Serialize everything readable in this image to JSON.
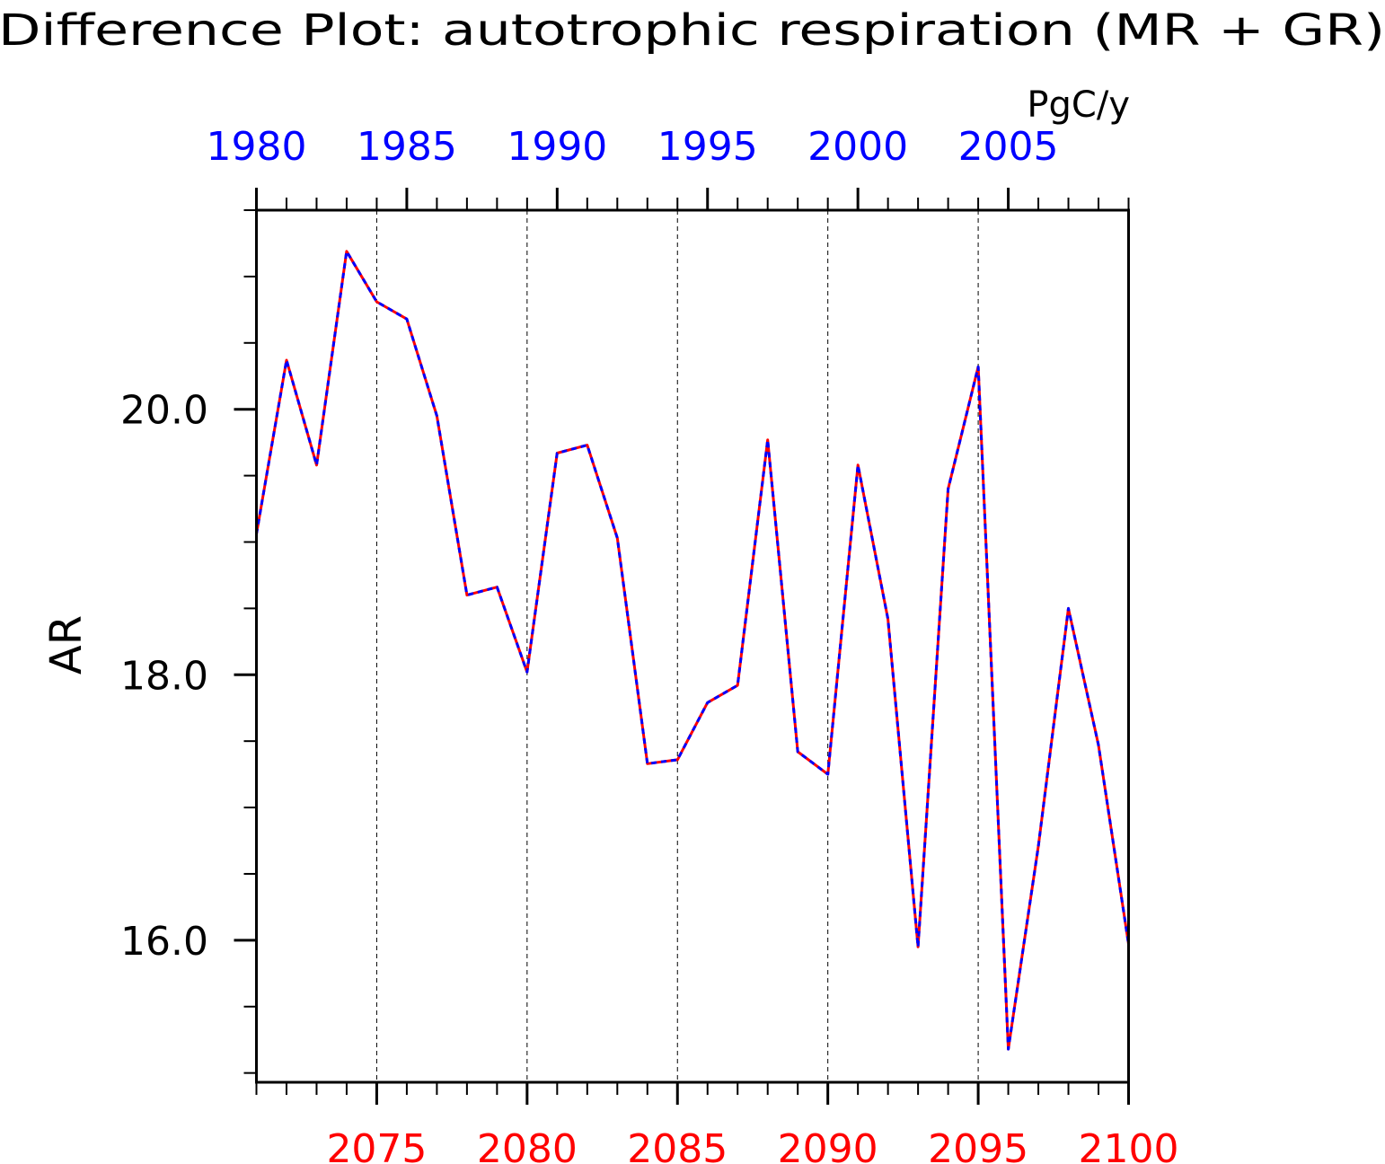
{
  "chart_data": {
    "type": "line",
    "title": "Difference Plot: autotrophic respiration (MR + GR)",
    "units": "PgC/y",
    "ylabel": "AR",
    "xlabel": "",
    "ylim": [
      14.93,
      21.5
    ],
    "y_ticks": [
      16.0,
      18.0,
      20.0
    ],
    "y_tick_labels": [
      "16.0",
      "18.0",
      "20.0"
    ],
    "grid": "dashed vertical lines at bottom-axis labeled ticks",
    "legend": "none",
    "bottom_axis": {
      "range": [
        2071,
        2100
      ],
      "ticks": [
        2075,
        2080,
        2085,
        2090,
        2095,
        2100
      ],
      "labels": [
        "2075",
        "2080",
        "2085",
        "2090",
        "2095",
        "2100"
      ],
      "color": "#ff0000"
    },
    "top_axis": {
      "range": [
        1980,
        2009
      ],
      "ticks": [
        1980,
        1985,
        1990,
        1995,
        2000,
        2005
      ],
      "labels": [
        "1980",
        "1985",
        "1990",
        "1995",
        "2000",
        "2005"
      ],
      "color": "#0000ff"
    },
    "x": [
      2071,
      2072,
      2073,
      2074,
      2075,
      2076,
      2077,
      2078,
      2079,
      2080,
      2081,
      2082,
      2083,
      2084,
      2085,
      2086,
      2087,
      2088,
      2089,
      2090,
      2091,
      2092,
      2093,
      2094,
      2095,
      2096,
      2097,
      2098,
      2099,
      2100
    ],
    "series": [
      {
        "color": "#ff0000",
        "style": "solid",
        "values": [
          19.06,
          20.37,
          19.58,
          21.19,
          20.81,
          20.68,
          19.95,
          18.6,
          18.66,
          18.02,
          19.67,
          19.73,
          19.03,
          17.33,
          17.36,
          17.79,
          17.92,
          19.77,
          17.42,
          17.25,
          19.58,
          18.42,
          15.95,
          19.4,
          20.32,
          15.18,
          16.71,
          18.5,
          17.47,
          15.97
        ]
      },
      {
        "color": "#0000ff",
        "style": "dashed",
        "values": [
          19.06,
          20.37,
          19.58,
          21.19,
          20.81,
          20.68,
          19.95,
          18.6,
          18.66,
          18.02,
          19.67,
          19.73,
          19.03,
          17.33,
          17.36,
          17.79,
          17.92,
          19.77,
          17.42,
          17.25,
          19.58,
          18.42,
          15.95,
          19.4,
          20.32,
          15.18,
          16.71,
          18.5,
          17.47,
          15.97
        ]
      }
    ]
  }
}
